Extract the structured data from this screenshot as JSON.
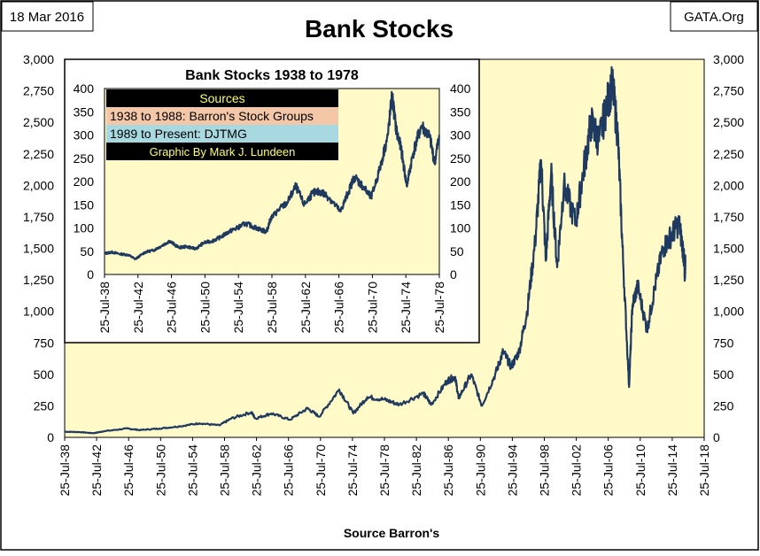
{
  "header": {
    "date": "18 Mar 2016",
    "source_brand": "GATA.Org"
  },
  "colors": {
    "plot_background": "#FFFAC8",
    "line": "#1F3A60",
    "frame": "#000000",
    "sources_header_bg": "#000000",
    "sources_header_text": "#FFFF66",
    "source1_bg": "#F4C7A8",
    "source2_bg": "#A8D8E0"
  },
  "chart_data": [
    {
      "type": "line",
      "title": "Bank Stocks",
      "xlabel": "Source Barron's",
      "ylabel": "",
      "x_tick_labels": [
        "25-Jul-38",
        "25-Jul-42",
        "25-Jul-46",
        "25-Jul-50",
        "25-Jul-54",
        "25-Jul-58",
        "25-Jul-62",
        "25-Jul-66",
        "25-Jul-70",
        "25-Jul-74",
        "25-Jul-78",
        "25-Jul-82",
        "25-Jul-86",
        "25-Jul-90",
        "25-Jul-94",
        "25-Jul-98",
        "25-Jul-02",
        "25-Jul-06",
        "25-Jul-10",
        "25-Jul-14",
        "25-Jul-18"
      ],
      "y_tick_labels": [
        "0",
        "250",
        "500",
        "750",
        "1,000",
        "1,250",
        "1,500",
        "1,750",
        "2,000",
        "2,250",
        "2,500",
        "2,750",
        "3,000"
      ],
      "xlim": [
        "1938-07-25",
        "2018-07-25"
      ],
      "ylim": [
        0,
        3000
      ],
      "grid": false,
      "series": [
        {
          "values": [
            [
              "1938-07-25",
              45
            ],
            [
              "1940-06-01",
              42
            ],
            [
              "1942-03-01",
              33
            ],
            [
              "1943-06-01",
              48
            ],
            [
              "1946-05-01",
              70
            ],
            [
              "1948-01-01",
              58
            ],
            [
              "1950-06-01",
              70
            ],
            [
              "1953-01-01",
              88
            ],
            [
              "1955-06-01",
              112
            ],
            [
              "1957-12-01",
              95
            ],
            [
              "1959-06-01",
              150
            ],
            [
              "1961-12-01",
              200
            ],
            [
              "1962-06-01",
              150
            ],
            [
              "1964-06-01",
              190
            ],
            [
              "1966-10-01",
              140
            ],
            [
              "1968-12-01",
              230
            ],
            [
              "1970-06-01",
              165
            ],
            [
              "1972-12-01",
              380
            ],
            [
              "1974-09-01",
              190
            ],
            [
              "1976-06-01",
              320
            ],
            [
              "1978-07-25",
              300
            ],
            [
              "1980-06-01",
              260
            ],
            [
              "1983-06-01",
              350
            ],
            [
              "1984-06-01",
              260
            ],
            [
              "1986-06-01",
              450
            ],
            [
              "1987-06-01",
              480
            ],
            [
              "1987-11-01",
              310
            ],
            [
              "1989-06-01",
              500
            ],
            [
              "1990-10-01",
              250
            ],
            [
              "1992-06-01",
              500
            ],
            [
              "1993-06-01",
              680
            ],
            [
              "1994-06-01",
              560
            ],
            [
              "1995-06-01",
              680
            ],
            [
              "1996-06-01",
              1000
            ],
            [
              "1997-06-01",
              1550
            ],
            [
              "1998-03-01",
              2200
            ],
            [
              "1998-10-01",
              1400
            ],
            [
              "1999-06-01",
              2100
            ],
            [
              "2000-03-01",
              1350
            ],
            [
              "2001-01-01",
              2000
            ],
            [
              "2002-07-01",
              1700
            ],
            [
              "2003-06-01",
              2100
            ],
            [
              "2004-06-01",
              2500
            ],
            [
              "2005-06-01",
              2350
            ],
            [
              "2006-06-01",
              2650
            ],
            [
              "2007-02-01",
              2800
            ],
            [
              "2007-10-01",
              2400
            ],
            [
              "2008-06-01",
              1400
            ],
            [
              "2009-03-01",
              400
            ],
            [
              "2009-08-01",
              1050
            ],
            [
              "2010-04-01",
              1200
            ],
            [
              "2011-06-01",
              850
            ],
            [
              "2012-06-01",
              1200
            ],
            [
              "2013-06-01",
              1500
            ],
            [
              "2014-06-01",
              1600
            ],
            [
              "2015-06-01",
              1700
            ],
            [
              "2016-01-01",
              1450
            ],
            [
              "2016-02-15",
              1300
            ],
            [
              "2016-03-18",
              1380
            ]
          ]
        }
      ]
    },
    {
      "type": "line",
      "title": "Bank Stocks 1938 to 1978",
      "xlabel": "",
      "ylabel": "",
      "x_tick_labels": [
        "25-Jul-38",
        "25-Jul-42",
        "25-Jul-46",
        "25-Jul-50",
        "25-Jul-54",
        "25-Jul-58",
        "25-Jul-62",
        "25-Jul-66",
        "25-Jul-70",
        "25-Jul-74",
        "25-Jul-78"
      ],
      "y_tick_labels": [
        "0",
        "50",
        "100",
        "150",
        "200",
        "250",
        "300",
        "350",
        "400"
      ],
      "xlim": [
        "1938-07-25",
        "1978-07-25"
      ],
      "ylim": [
        0,
        400
      ],
      "grid": false,
      "series": [
        {
          "values": [
            [
              "1938-07-25",
              45
            ],
            [
              "1939-06-01",
              48
            ],
            [
              "1940-06-01",
              44
            ],
            [
              "1941-06-01",
              42
            ],
            [
              "1942-04-01",
              33
            ],
            [
              "1943-06-01",
              48
            ],
            [
              "1944-06-01",
              52
            ],
            [
              "1945-06-01",
              62
            ],
            [
              "1946-05-01",
              72
            ],
            [
              "1947-06-01",
              58
            ],
            [
              "1948-06-01",
              60
            ],
            [
              "1949-06-01",
              55
            ],
            [
              "1950-06-01",
              68
            ],
            [
              "1951-06-01",
              72
            ],
            [
              "1952-06-01",
              80
            ],
            [
              "1953-06-01",
              92
            ],
            [
              "1954-06-01",
              100
            ],
            [
              "1955-06-01",
              110
            ],
            [
              "1956-06-01",
              102
            ],
            [
              "1957-06-01",
              95
            ],
            [
              "1957-12-01",
              92
            ],
            [
              "1958-06-01",
              120
            ],
            [
              "1959-06-01",
              140
            ],
            [
              "1960-06-01",
              155
            ],
            [
              "1961-06-01",
              190
            ],
            [
              "1962-06-01",
              150
            ],
            [
              "1963-06-01",
              175
            ],
            [
              "1964-06-01",
              178
            ],
            [
              "1965-06-01",
              165
            ],
            [
              "1966-10-01",
              135
            ],
            [
              "1967-06-01",
              165
            ],
            [
              "1968-06-01",
              210
            ],
            [
              "1969-06-01",
              190
            ],
            [
              "1970-06-01",
              165
            ],
            [
              "1971-06-01",
              225
            ],
            [
              "1972-06-01",
              300
            ],
            [
              "1972-12-01",
              385
            ],
            [
              "1973-06-01",
              310
            ],
            [
              "1974-01-01",
              270
            ],
            [
              "1974-09-01",
              190
            ],
            [
              "1975-06-01",
              260
            ],
            [
              "1976-06-01",
              320
            ],
            [
              "1977-06-01",
              295
            ],
            [
              "1978-01-01",
              240
            ],
            [
              "1978-07-25",
              300
            ]
          ]
        }
      ]
    }
  ],
  "inset_sources": {
    "header": "Sources",
    "lines": [
      "1938 to 1988: Barron's Stock Groups",
      "1989 to Present: DJTMG",
      "Graphic By Mark J. Lundeen"
    ]
  }
}
